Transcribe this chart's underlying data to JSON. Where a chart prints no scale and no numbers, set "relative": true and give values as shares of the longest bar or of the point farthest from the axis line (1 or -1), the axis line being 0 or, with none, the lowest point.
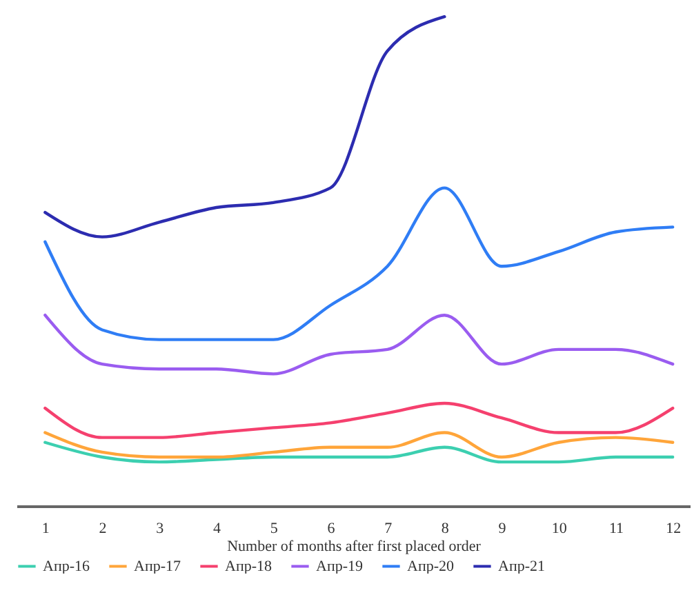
{
  "chart_data": {
    "type": "line",
    "xlabel": "Number of months after first placed order",
    "x": [
      1,
      2,
      3,
      4,
      5,
      6,
      7,
      8,
      9,
      10,
      11,
      12
    ],
    "xlim": [
      0.5,
      12.3
    ],
    "xticks": [
      1,
      2,
      3,
      4,
      5,
      6,
      7,
      8,
      9,
      10,
      11,
      12
    ],
    "relative": true,
    "legend": "bottom",
    "series": [
      {
        "name": "Апр-16",
        "color": "#3ccfb0",
        "values": [
          0.13,
          0.1,
          0.09,
          0.095,
          0.1,
          0.1,
          0.1,
          0.12,
          0.09,
          0.09,
          0.1,
          0.1
        ]
      },
      {
        "name": "Апр-17",
        "color": "#ffa53a",
        "values": [
          0.15,
          0.11,
          0.1,
          0.1,
          0.11,
          0.12,
          0.12,
          0.15,
          0.1,
          0.13,
          0.14,
          0.13
        ]
      },
      {
        "name": "Апр-18",
        "color": "#f5406e",
        "values": [
          0.2,
          0.14,
          0.14,
          0.15,
          0.16,
          0.17,
          0.19,
          0.21,
          0.18,
          0.15,
          0.15,
          0.2
        ]
      },
      {
        "name": "Апр-19",
        "color": "#9a5cf0",
        "values": [
          0.39,
          0.29,
          0.28,
          0.28,
          0.27,
          0.31,
          0.32,
          0.39,
          0.29,
          0.32,
          0.32,
          0.29
        ]
      },
      {
        "name": "Апр-20",
        "color": "#2f7df5",
        "values": [
          0.54,
          0.36,
          0.34,
          0.34,
          0.34,
          0.41,
          0.49,
          0.65,
          0.49,
          0.52,
          0.56,
          0.57
        ]
      },
      {
        "name": "Апр-21",
        "color": "#2c2cb0",
        "values": [
          0.6,
          0.55,
          0.58,
          0.61,
          0.62,
          0.65,
          0.93,
          1,
          null,
          null,
          null,
          null
        ]
      }
    ]
  }
}
